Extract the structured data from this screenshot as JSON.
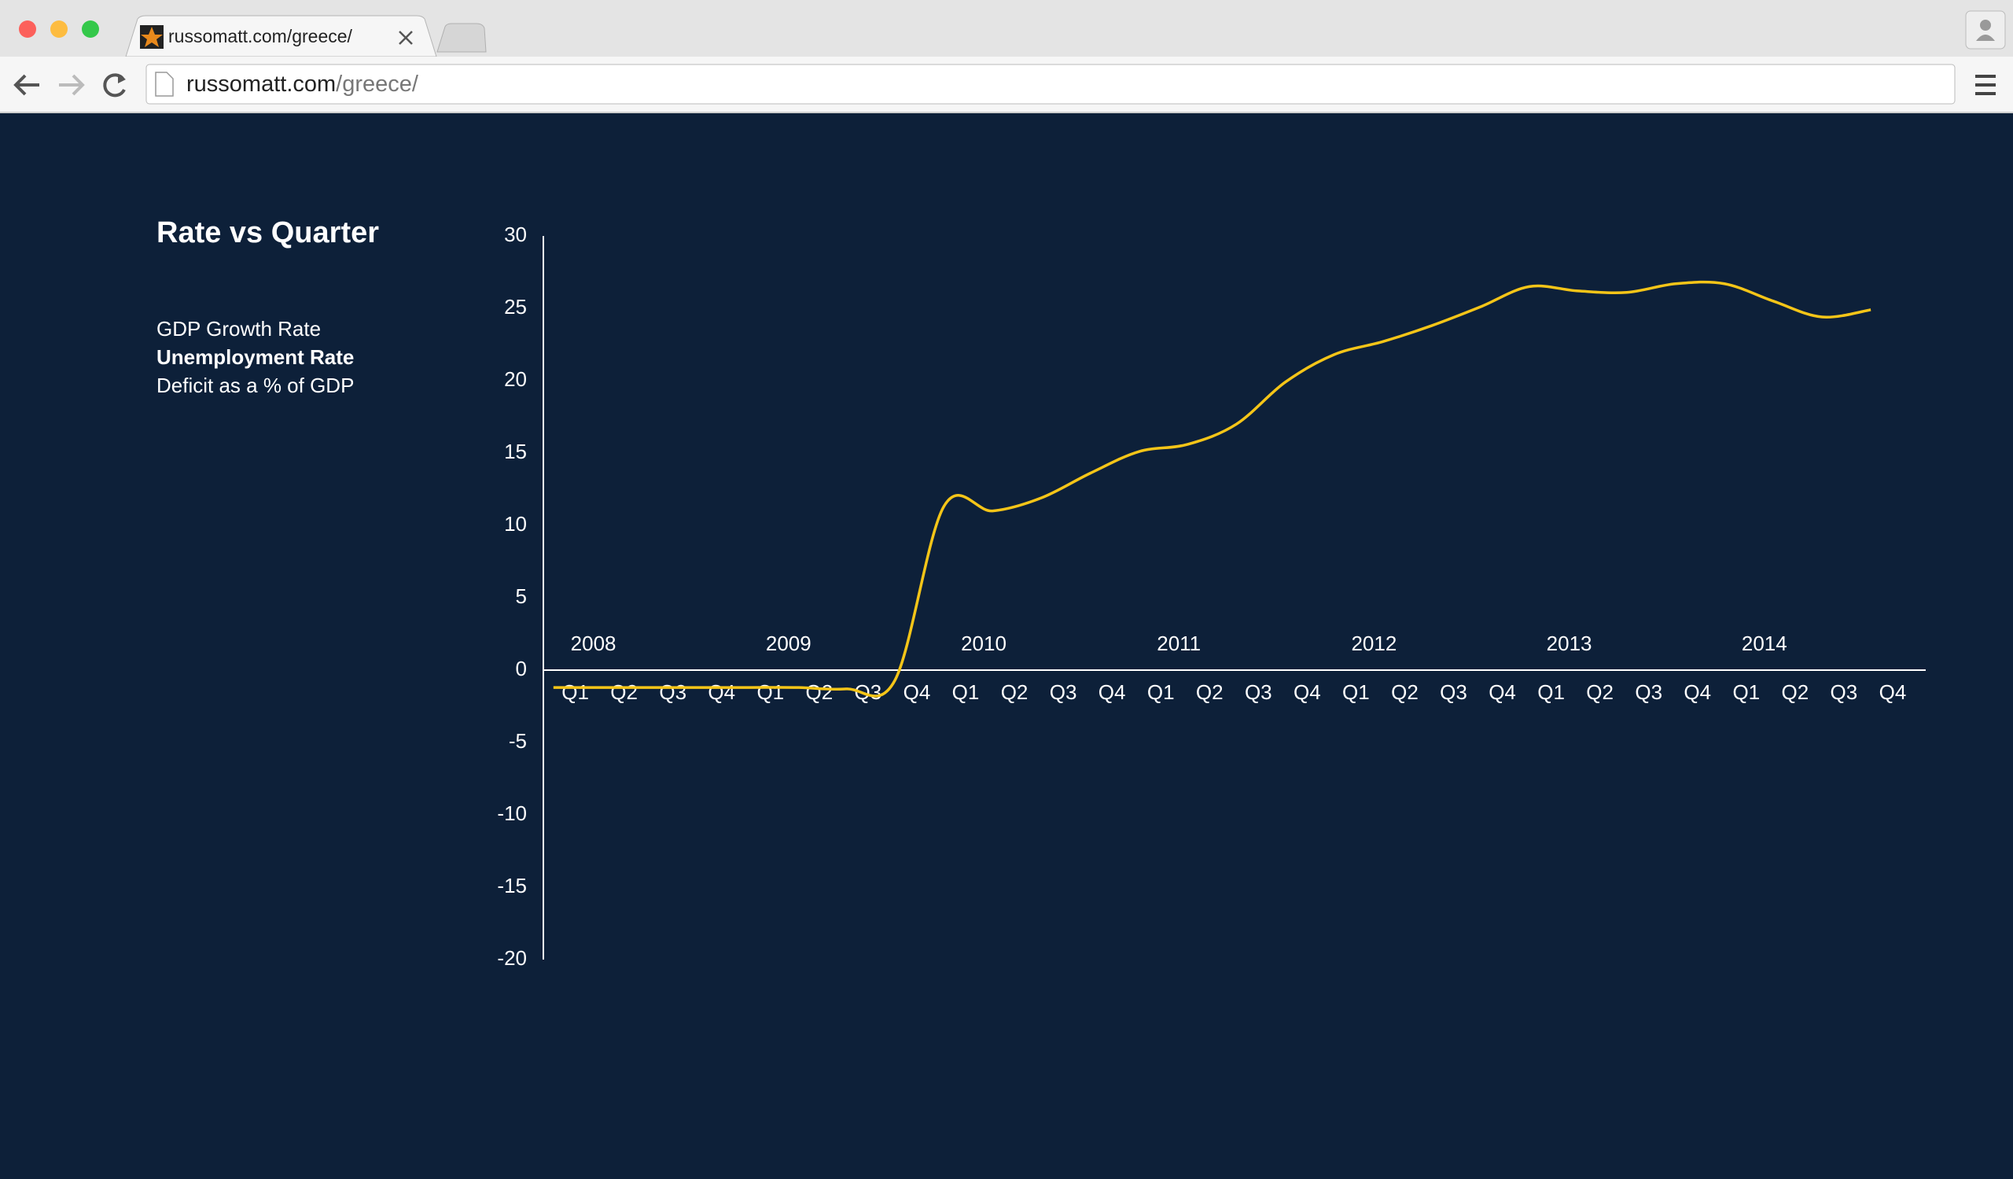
{
  "browser": {
    "tab_title": "russomatt.com/greece/",
    "url_host": "russomatt.com",
    "url_path": "/greece/"
  },
  "chart_data": {
    "type": "line",
    "title": "Rate vs Quarter",
    "metrics": [
      "GDP Growth Rate",
      "Unemployment Rate",
      "Deficit as a % of GDP"
    ],
    "selected_metric": 1,
    "year_labels": [
      "2008",
      "2009",
      "2010",
      "2011",
      "2012",
      "2013",
      "2014"
    ],
    "categories": [
      "Q1",
      "Q2",
      "Q3",
      "Q4",
      "Q1",
      "Q2",
      "Q3",
      "Q4",
      "Q1",
      "Q2",
      "Q3",
      "Q4",
      "Q1",
      "Q2",
      "Q3",
      "Q4",
      "Q1",
      "Q2",
      "Q3",
      "Q4",
      "Q1",
      "Q2",
      "Q3",
      "Q4",
      "Q1",
      "Q2",
      "Q3",
      "Q4"
    ],
    "color": "#f5c518",
    "values": [
      -1.2,
      -1.2,
      -1.2,
      -1.2,
      -1.2,
      -1.2,
      -1.3,
      -0.7,
      11.3,
      11.0,
      11.9,
      13.6,
      15.1,
      15.6,
      17.0,
      19.9,
      21.8,
      22.7,
      23.8,
      25.1,
      26.5,
      26.2,
      26.1,
      26.7,
      26.7,
      25.5,
      24.4,
      24.9
    ],
    "ylim": [
      -20,
      30
    ],
    "yticks": [
      -20,
      -15,
      -10,
      -5,
      0,
      5,
      10,
      15,
      20,
      25,
      30
    ]
  }
}
